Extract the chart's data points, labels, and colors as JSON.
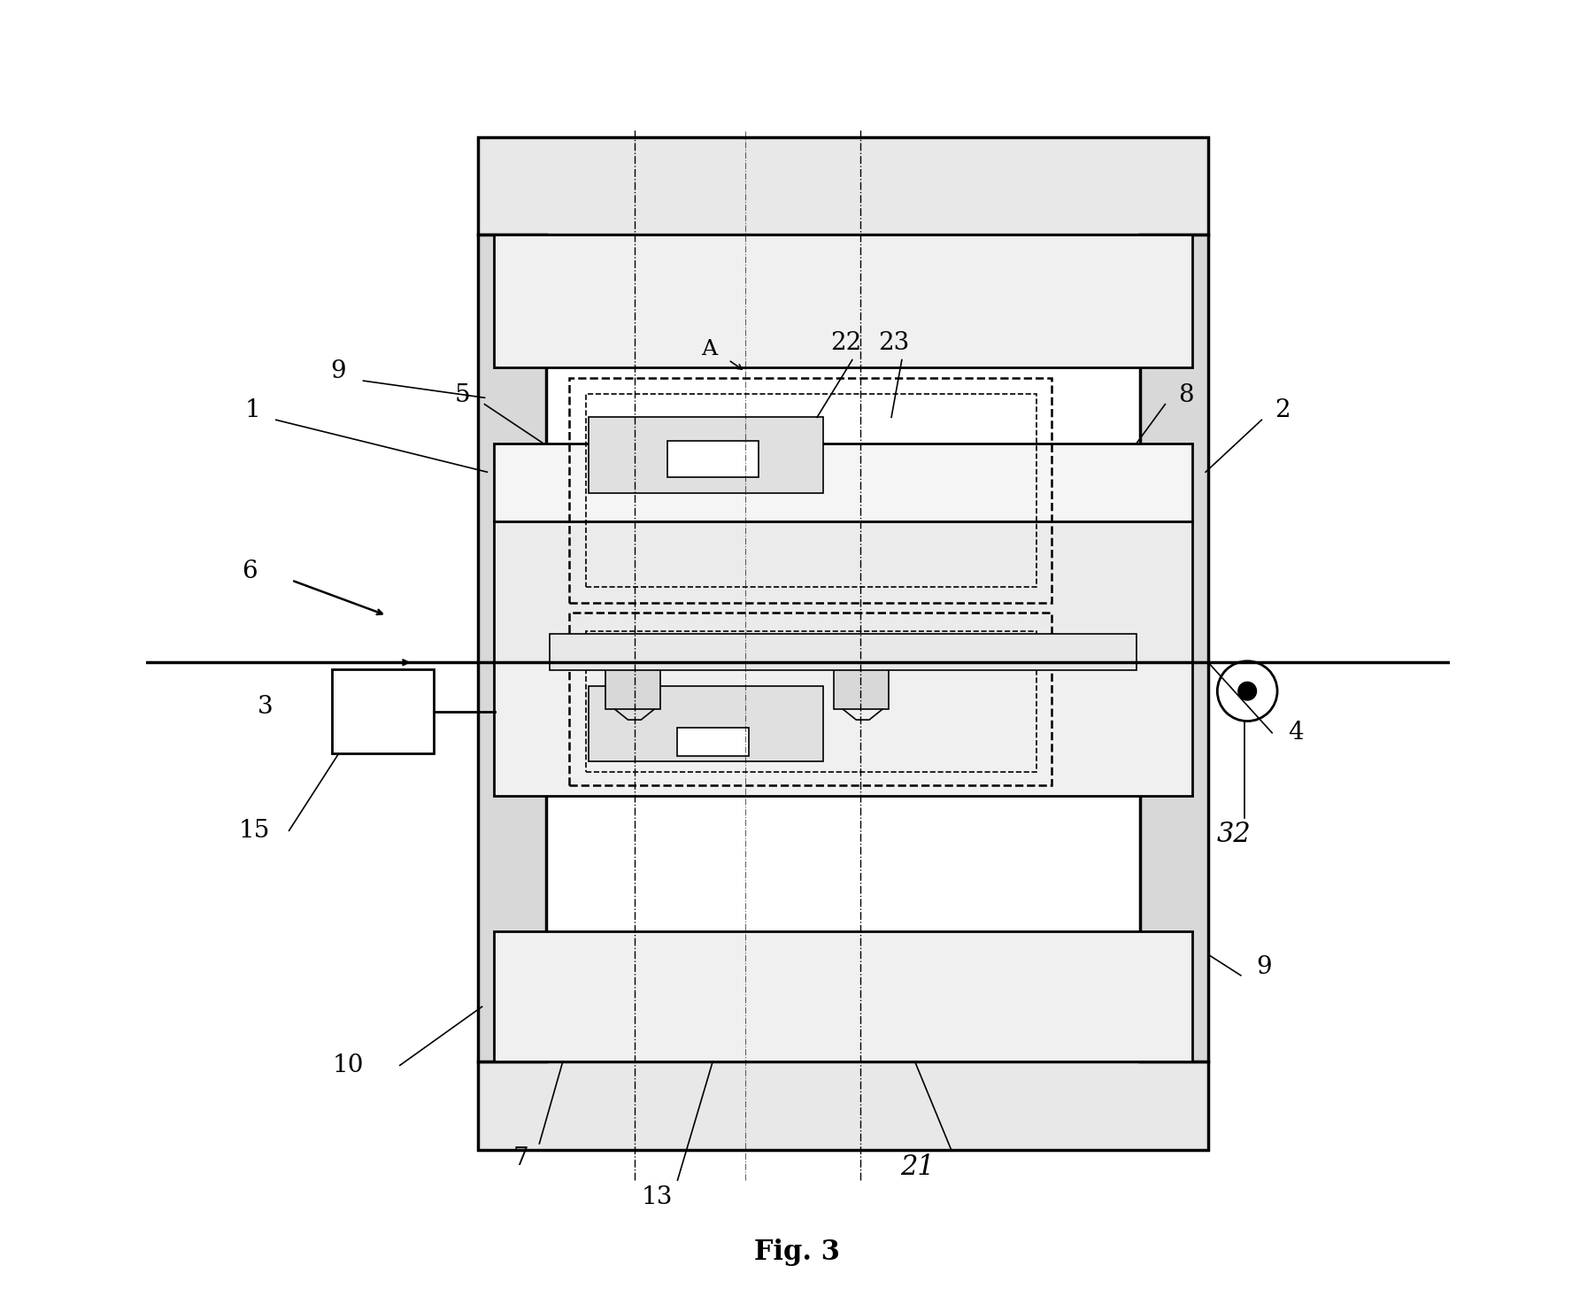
{
  "title": "Fig. 3",
  "bg_color": "#ffffff",
  "fig_width": 18.02,
  "fig_height": 14.73
}
